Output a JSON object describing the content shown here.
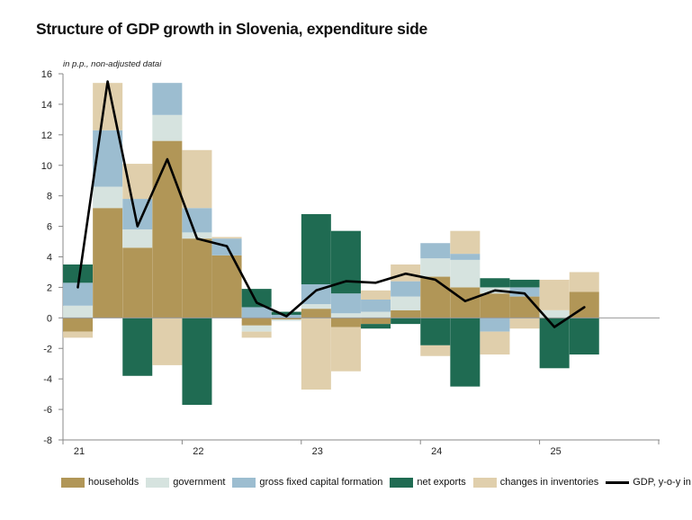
{
  "chart_data": {
    "type": "bar",
    "stacked": true,
    "title": "Structure of GDP growth in Slovenia, expenditure side",
    "unit_note": "in p.p., non-adjusted datai",
    "ylim": [
      -8,
      16
    ],
    "yticks": [
      -8,
      -6,
      -4,
      -2,
      0,
      2,
      4,
      6,
      8,
      10,
      12,
      14,
      16
    ],
    "year_labels": [
      "21",
      "22",
      "23",
      "24",
      "25"
    ],
    "categories": [
      "21Q1",
      "21Q2",
      "21Q3",
      "21Q4",
      "22Q1",
      "22Q2",
      "22Q3",
      "22Q4",
      "23Q1",
      "23Q2",
      "23Q3",
      "23Q4",
      "24Q1",
      "24Q2",
      "24Q3",
      "24Q4",
      "25Q1",
      "25Q2"
    ],
    "series": [
      {
        "name": "households",
        "color": "#b19657",
        "values": [
          -0.9,
          7.2,
          4.6,
          11.6,
          5.2,
          4.1,
          -0.5,
          -0.1,
          0.6,
          -0.6,
          -0.4,
          0.5,
          2.7,
          2.0,
          1.6,
          1.4,
          0.0,
          1.7
        ]
      },
      {
        "name": "government",
        "color": "#d6e3df",
        "values": [
          0.8,
          1.4,
          1.2,
          1.7,
          0.4,
          0.0,
          -0.4,
          -0.1,
          0.3,
          0.3,
          0.4,
          0.9,
          1.2,
          1.8,
          0.4,
          0.0,
          0.5,
          0.0
        ]
      },
      {
        "name": "gross fixed capital formation",
        "color": "#9cbdd0",
        "values": [
          1.5,
          3.7,
          2.0,
          2.1,
          1.6,
          1.1,
          0.7,
          0.2,
          1.3,
          1.3,
          0.8,
          1.0,
          1.0,
          0.4,
          -0.9,
          0.6,
          0.0,
          0.0
        ]
      },
      {
        "name": "net exports",
        "color": "#1f6b52",
        "values": [
          1.2,
          0.0,
          -3.8,
          0.0,
          -5.7,
          0.0,
          1.2,
          0.2,
          4.6,
          4.1,
          -0.3,
          -0.4,
          -1.8,
          -4.5,
          0.6,
          0.5,
          -3.3,
          -2.4
        ]
      },
      {
        "name": "changes in inventories",
        "color": "#e0cfac",
        "values": [
          -0.4,
          3.1,
          2.3,
          -3.1,
          3.8,
          0.1,
          -0.4,
          0.0,
          -4.7,
          -2.9,
          0.6,
          1.1,
          -0.7,
          1.5,
          -1.5,
          -0.7,
          2.0,
          1.3
        ]
      }
    ],
    "line": {
      "name": "GDP, y-o-y in %",
      "color": "#000000",
      "values": [
        2.0,
        15.5,
        6.0,
        10.4,
        5.2,
        4.7,
        1.0,
        0.1,
        1.8,
        2.4,
        2.3,
        2.9,
        2.5,
        1.1,
        1.8,
        1.6,
        -0.6,
        0.7
      ]
    }
  }
}
